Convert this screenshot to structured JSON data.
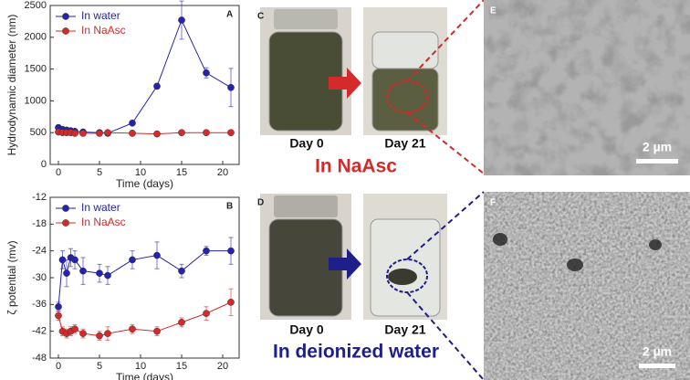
{
  "chart_data": [
    {
      "type": "line",
      "panel_label": "A",
      "y_label": "Hydrodynamic diameter (nm)",
      "x_label": "Time (days)",
      "x": [
        0,
        0.5,
        1,
        1.5,
        2,
        3,
        5,
        6,
        9,
        12,
        15,
        18,
        21
      ],
      "xlim": [
        -1,
        22
      ],
      "xticks": [
        0,
        5,
        10,
        15,
        20
      ],
      "ylim": [
        0,
        2500
      ],
      "yticks": [
        0,
        500,
        1000,
        1500,
        2000,
        2500
      ],
      "legend": "upper left",
      "series": [
        {
          "name": "In water",
          "color": "#2323b0",
          "values": [
            580,
            550,
            540,
            530,
            520,
            510,
            500,
            490,
            650,
            1230,
            2270,
            1440,
            1210
          ],
          "errors": [
            20,
            20,
            20,
            20,
            20,
            20,
            20,
            20,
            30,
            40,
            300,
            80,
            300
          ]
        },
        {
          "name": "In NaAsc",
          "color": "#d42a2a",
          "values": [
            510,
            500,
            500,
            500,
            490,
            490,
            490,
            500,
            490,
            480,
            500,
            500,
            500
          ],
          "errors": [
            15,
            15,
            15,
            15,
            15,
            15,
            15,
            15,
            15,
            15,
            15,
            15,
            15
          ]
        }
      ]
    },
    {
      "type": "line",
      "panel_label": "B",
      "y_label": "ζ potential  (mv)",
      "x_label": "Time (days)",
      "x": [
        0,
        0.5,
        1,
        1.5,
        2,
        3,
        5,
        6,
        9,
        12,
        15,
        18,
        21
      ],
      "xlim": [
        -1,
        22
      ],
      "xticks": [
        0,
        5,
        10,
        15,
        20
      ],
      "ylim": [
        -48,
        -12
      ],
      "yticks": [
        -48,
        -42,
        -36,
        -30,
        -24,
        -18,
        -12
      ],
      "legend": "upper left",
      "series": [
        {
          "name": "In water",
          "color": "#2323b0",
          "values": [
            -36.5,
            -26,
            -29,
            -25.5,
            -26,
            -28.5,
            -29,
            -29.5,
            -26,
            -25,
            -28.5,
            -24,
            -24
          ],
          "errors": [
            1,
            2,
            3,
            2,
            2,
            3,
            2,
            2,
            2,
            3,
            1.5,
            1,
            3
          ]
        },
        {
          "name": "In NaAsc",
          "color": "#d42a2a",
          "values": [
            -38.5,
            -42,
            -42.5,
            -42,
            -41.5,
            -42.5,
            -43,
            -42.5,
            -41.5,
            -42,
            -40,
            -38,
            -35.5
          ],
          "errors": [
            1,
            1,
            1,
            1,
            1,
            1,
            1,
            1.5,
            1,
            1,
            1,
            1.5,
            3
          ]
        }
      ]
    }
  ],
  "photos": [
    {
      "label": "C",
      "captions": [
        "Day 0",
        "Day 21"
      ],
      "title": "In NaAsc"
    },
    {
      "label": "D",
      "captions": [
        "Day 0",
        "Day 21"
      ],
      "title": "In deionized water"
    }
  ],
  "micrographs": [
    {
      "label": "E",
      "scale": "2 µm"
    },
    {
      "label": "F",
      "scale": "2 µm"
    }
  ]
}
